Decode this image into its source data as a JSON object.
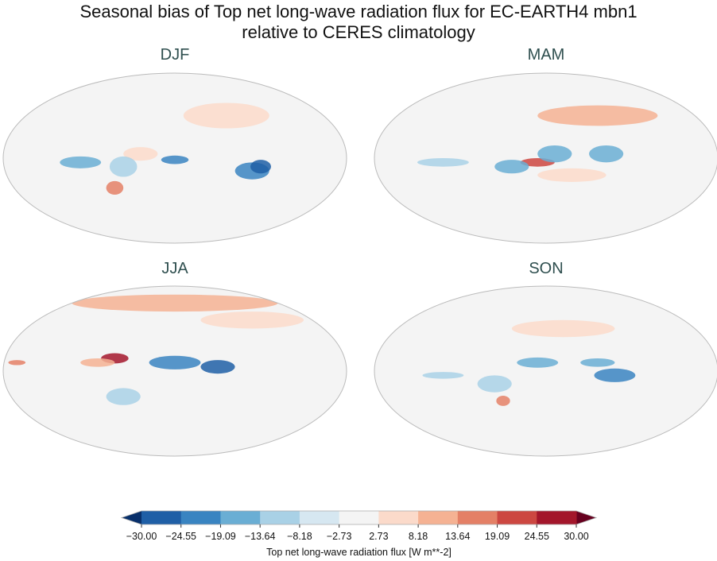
{
  "title_line1": "Seasonal bias of Top net long-wave radiation flux for EC-EARTH4 mbn1",
  "title_line2": "relative to CERES climatology",
  "panels": [
    {
      "label": "DJF"
    },
    {
      "label": "MAM"
    },
    {
      "label": "JJA"
    },
    {
      "label": "SON"
    }
  ],
  "chart_data": {
    "type": "heatmap",
    "projection": "Robinson",
    "colormap": "RdBu_r",
    "panels": [
      "DJF",
      "MAM",
      "JJA",
      "SON"
    ],
    "colorbar": {
      "label": "Top net long-wave radiation flux [W m**-2]",
      "ticks": [
        "−30.00",
        "−24.55",
        "−19.09",
        "−13.64",
        "−8.18",
        "−2.73",
        "2.73",
        "8.18",
        "13.64",
        "19.09",
        "24.55",
        "30.00"
      ],
      "extend": "both",
      "colors": [
        "#1f5fa6",
        "#3984c1",
        "#6aaed4",
        "#a9d1e6",
        "#d6e7f1",
        "#f4f4f4",
        "#fbdaca",
        "#f5b293",
        "#e48066",
        "#cc4741",
        "#a3162b"
      ],
      "under_color": "#08306b",
      "over_color": "#67001f"
    }
  }
}
